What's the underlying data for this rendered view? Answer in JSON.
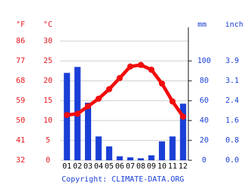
{
  "chart_data": {
    "type": "combo",
    "unit_labels": {
      "fahrenheit": "°F",
      "celsius": "°C",
      "mm": "mm",
      "inch": "inch"
    },
    "categories": [
      "01",
      "02",
      "03",
      "04",
      "05",
      "06",
      "07",
      "08",
      "09",
      "10",
      "11",
      "12"
    ],
    "series": [
      {
        "kind": "bar",
        "axis": "y2",
        "color": "#1a3fd6",
        "values": [
          88,
          94,
          58,
          24,
          14,
          4,
          3,
          2,
          5,
          19,
          24,
          57
        ]
      },
      {
        "kind": "line",
        "axis": "y",
        "color": "#f20c0c",
        "values": [
          11.4,
          11.7,
          13.6,
          15.5,
          17.9,
          20.7,
          23.6,
          24.0,
          22.8,
          19.3,
          14.8,
          11.0
        ]
      }
    ],
    "ylim": [
      0,
      30
    ],
    "yticks": [
      0,
      5,
      10,
      15,
      20,
      25,
      30
    ],
    "y_fahrenheit_ticks": [
      {
        "value": 0,
        "label": "32"
      },
      {
        "value": 5,
        "label": "41"
      },
      {
        "value": 10,
        "label": "50"
      },
      {
        "value": 15,
        "label": "59"
      },
      {
        "value": 20,
        "label": "68"
      },
      {
        "value": 25,
        "label": "77"
      },
      {
        "value": 30,
        "label": "86"
      }
    ],
    "y2lim": [
      0,
      120
    ],
    "y2ticks": [
      0,
      20,
      40,
      60,
      80,
      100
    ],
    "y2_inch_ticks": [
      {
        "value": 0,
        "label": "0.0"
      },
      {
        "value": 20,
        "label": "0.8"
      },
      {
        "value": 40,
        "label": "1.6"
      },
      {
        "value": 60,
        "label": "2.4"
      },
      {
        "value": 80,
        "label": "3.1"
      },
      {
        "value": 100,
        "label": "3.9"
      }
    ],
    "grid": true,
    "credit": "Copyright: CLIMATE-DATA.ORG"
  }
}
